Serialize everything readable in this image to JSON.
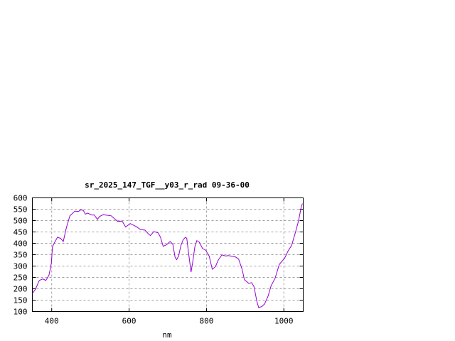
{
  "chart_data": {
    "type": "line",
    "title": "sr_2025_147_TGF__y03_r_rad 09-36-00",
    "xlabel": "nm",
    "ylabel": "",
    "xlim": [
      350,
      1050
    ],
    "ylim": [
      100,
      600
    ],
    "xticks": [
      400,
      600,
      800,
      1000
    ],
    "yticks": [
      100,
      150,
      200,
      250,
      300,
      350,
      400,
      450,
      500,
      550,
      600
    ],
    "grid": true,
    "line_color": "#9400d3",
    "series": [
      {
        "x": [
          350,
          358,
          368,
          377,
          385,
          393,
          399,
          402,
          408,
          415,
          423,
          430,
          438,
          447,
          460,
          469,
          476,
          482,
          487,
          493,
          504,
          510,
          518,
          524,
          533,
          554,
          563,
          571,
          582,
          591,
          603,
          618,
          630,
          641,
          649,
          655,
          664,
          675,
          681,
          688,
          697,
          706,
          713,
          719,
          723,
          728,
          734,
          740,
          746,
          749,
          754,
          760,
          764,
          770,
          775,
          781,
          790,
          798,
          807,
          815,
          823,
          831,
          840,
          850,
          856,
          874,
          883,
          892,
          898,
          909,
          917,
          923,
          930,
          935,
          943,
          950,
          959,
          967,
          977,
          988,
          1002,
          1011,
          1020,
          1029,
          1038,
          1045,
          1048
        ],
        "y": [
          179,
          198,
          237,
          243,
          237,
          260,
          312,
          385,
          406,
          427,
          422,
          408,
          469,
          521,
          542,
          540,
          548,
          544,
          528,
          533,
          524,
          525,
          505,
          518,
          526,
          521,
          507,
          496,
          498,
          472,
          487,
          474,
          460,
          458,
          443,
          434,
          452,
          446,
          427,
          387,
          394,
          408,
          396,
          338,
          328,
          344,
          391,
          417,
          427,
          422,
          354,
          273,
          312,
          385,
          412,
          406,
          377,
          370,
          344,
          286,
          297,
          328,
          349,
          344,
          346,
          341,
          331,
          286,
          240,
          224,
          227,
          208,
          146,
          117,
          122,
          133,
          167,
          213,
          245,
          307,
          335,
          367,
          391,
          443,
          500,
          562,
          575
        ]
      }
    ]
  }
}
